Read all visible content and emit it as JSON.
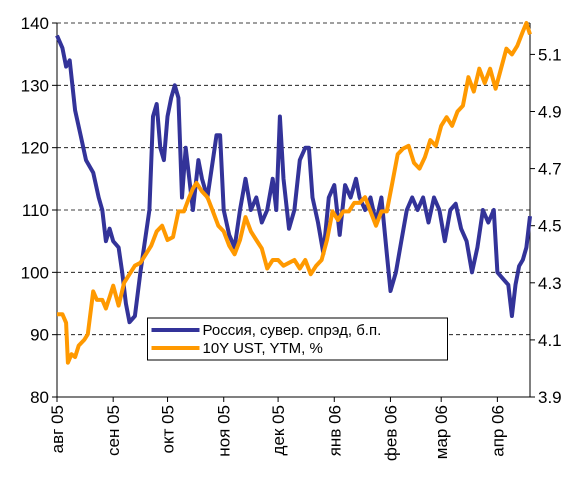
{
  "chart_data": {
    "type": "line",
    "xlim": [
      0,
      261
    ],
    "xticks": [
      {
        "value": 0,
        "label": "авг 05"
      },
      {
        "value": 31,
        "label": "сен 05"
      },
      {
        "value": 61,
        "label": "окт 05"
      },
      {
        "value": 92,
        "label": "ноя 05"
      },
      {
        "value": 122,
        "label": "дек 05"
      },
      {
        "value": 153,
        "label": "янв 06"
      },
      {
        "value": 184,
        "label": "фев 06"
      },
      {
        "value": 212,
        "label": "мар 06"
      },
      {
        "value": 243,
        "label": "апр 06"
      }
    ],
    "ylim": [
      80,
      140
    ],
    "yticks": [
      80,
      90,
      100,
      110,
      120,
      130,
      140
    ],
    "y2lim": [
      3.9,
      5.21
    ],
    "y2ticks": [
      3.9,
      4.1,
      4.3,
      4.5,
      4.7,
      4.9,
      5.1
    ],
    "grid": true,
    "legend": "lower center",
    "series": [
      {
        "name": "Россия, сувер. спрэд, б.п.",
        "color": "#333399",
        "x": [
          0,
          3,
          5,
          7,
          10,
          13,
          16,
          20,
          23,
          25,
          27,
          29,
          31,
          34,
          36,
          38,
          40,
          43,
          46,
          49,
          51,
          53,
          55,
          57,
          59,
          61,
          63,
          65,
          67,
          69,
          71,
          73,
          75,
          78,
          80,
          83,
          86,
          88,
          90,
          92,
          95,
          98,
          101,
          104,
          107,
          110,
          113,
          116,
          119,
          121,
          123,
          125,
          128,
          131,
          134,
          137,
          139,
          141,
          144,
          147,
          150,
          153,
          156,
          159,
          162,
          165,
          167,
          170,
          173,
          176,
          179,
          182,
          184,
          187,
          190,
          193,
          196,
          199,
          202,
          205,
          208,
          211,
          214,
          217,
          220,
          223,
          226,
          229,
          232,
          235,
          238,
          241,
          243,
          246,
          249,
          251,
          253,
          255,
          257,
          259,
          261
        ],
        "values": [
          138,
          136,
          133,
          134,
          126,
          122,
          118,
          116,
          112,
          110,
          105,
          107,
          105,
          104,
          100,
          95,
          92,
          93,
          100,
          106,
          110,
          125,
          127,
          120,
          118,
          125,
          128,
          130,
          128,
          112,
          120,
          115,
          110,
          118,
          115,
          112,
          118,
          122,
          122,
          110,
          106,
          104,
          110,
          115,
          110,
          112,
          108,
          110,
          115,
          110,
          125,
          115,
          107,
          110,
          118,
          120,
          120,
          112,
          108,
          103,
          112,
          114,
          106,
          114,
          112,
          115,
          112,
          110,
          112,
          108,
          112,
          103,
          97,
          100,
          105,
          110,
          112,
          110,
          112,
          108,
          112,
          110,
          105,
          110,
          111,
          107,
          105,
          100,
          104,
          110,
          108,
          110,
          100,
          99,
          98,
          93,
          98,
          101,
          102,
          104,
          109
        ]
      },
      {
        "name": "10Y UST, YTM, %",
        "color": "#ff9900",
        "axis": "y2",
        "x": [
          0,
          3,
          5,
          6,
          8,
          10,
          12,
          15,
          17,
          20,
          22,
          25,
          27,
          29,
          31,
          34,
          37,
          40,
          43,
          46,
          49,
          52,
          55,
          58,
          61,
          64,
          67,
          70,
          73,
          75,
          77,
          80,
          83,
          86,
          89,
          92,
          95,
          98,
          101,
          104,
          107,
          110,
          113,
          116,
          119,
          122,
          125,
          128,
          131,
          134,
          137,
          140,
          143,
          146,
          149,
          152,
          155,
          158,
          161,
          164,
          167,
          170,
          173,
          176,
          179,
          182,
          185,
          188,
          191,
          194,
          197,
          200,
          203,
          206,
          209,
          212,
          215,
          218,
          221,
          224,
          227,
          230,
          233,
          236,
          239,
          242,
          245,
          248,
          251,
          254,
          257,
          259,
          261
        ],
        "values": [
          4.19,
          4.19,
          4.16,
          4.02,
          4.05,
          4.04,
          4.08,
          4.1,
          4.12,
          4.27,
          4.24,
          4.24,
          4.21,
          4.25,
          4.29,
          4.22,
          4.3,
          4.33,
          4.36,
          4.37,
          4.4,
          4.43,
          4.48,
          4.5,
          4.45,
          4.46,
          4.55,
          4.55,
          4.6,
          4.63,
          4.65,
          4.62,
          4.6,
          4.55,
          4.5,
          4.48,
          4.43,
          4.4,
          4.45,
          4.53,
          4.48,
          4.45,
          4.42,
          4.35,
          4.38,
          4.38,
          4.36,
          4.37,
          4.38,
          4.35,
          4.38,
          4.33,
          4.36,
          4.38,
          4.45,
          4.55,
          4.52,
          4.55,
          4.55,
          4.58,
          4.58,
          4.6,
          4.55,
          4.5,
          4.55,
          4.55,
          4.65,
          4.75,
          4.77,
          4.78,
          4.72,
          4.7,
          4.74,
          4.8,
          4.78,
          4.85,
          4.88,
          4.85,
          4.9,
          4.92,
          5.02,
          4.97,
          5.05,
          5.0,
          5.05,
          4.98,
          5.05,
          5.12,
          5.1,
          5.13,
          5.18,
          5.21,
          5.17
        ]
      }
    ]
  }
}
